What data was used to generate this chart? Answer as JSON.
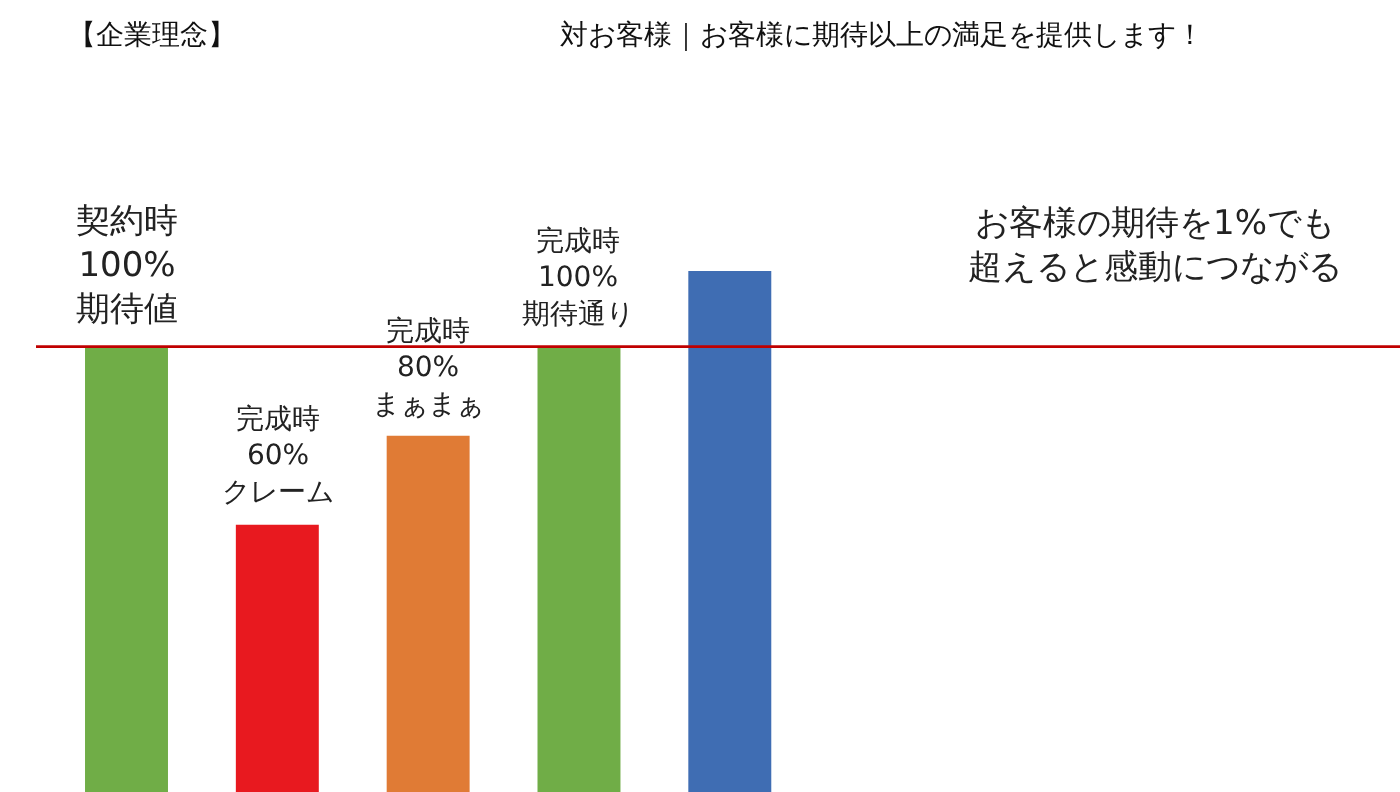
{
  "chart_data": {
    "type": "bar",
    "title": "【企業理念】",
    "subtitle": "対お客様｜お客様に期待以上の満足を提供します！",
    "categories": [
      null,
      null,
      null,
      null,
      null
    ],
    "values": [
      100,
      60,
      80,
      100,
      117
    ],
    "colors": [
      "#70ad47",
      "#e8191f",
      "#e07b35",
      "#70ad47",
      "#3f6db3"
    ],
    "value_labels": [
      "契約時\n100%\n期待値",
      "完成時\n60%\nクレーム",
      "完成時\n80%\nまぁまぁ",
      "完成時\n100%\n期待通り",
      null
    ],
    "ref_lines": [
      {
        "axis": "y",
        "value": 100,
        "color": "#c00000"
      }
    ],
    "annotations": [
      "お客様の期待を1%でも超えると感動につながる"
    ],
    "grid": false
  }
}
